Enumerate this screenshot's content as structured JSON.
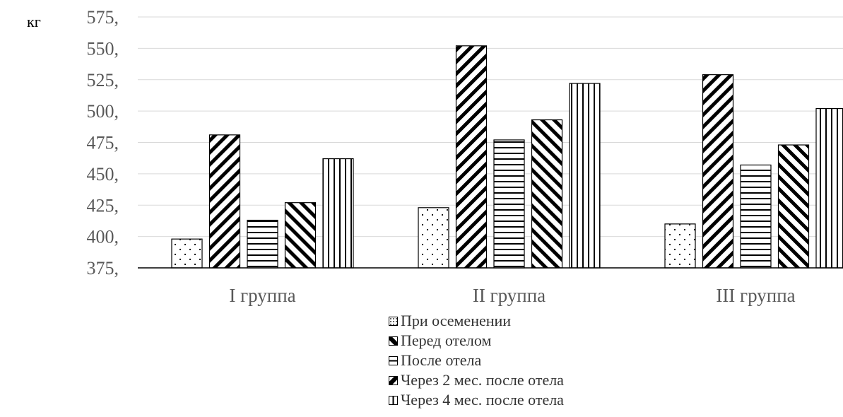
{
  "chart_data": {
    "type": "bar",
    "ylabel": "кг",
    "ylim": [
      375,
      575
    ],
    "yticks": [
      "375,",
      "400,",
      "425,",
      "450,",
      "475,",
      "500,",
      "525,",
      "550,",
      "575,"
    ],
    "categories": [
      "I группа",
      "II группа",
      "III группа"
    ],
    "grid": true,
    "legend_position": "bottom",
    "series": [
      {
        "name": "При осеменении",
        "pattern": "dots",
        "values": [
          398,
          423,
          410
        ]
      },
      {
        "name": "Перед отелом",
        "pattern": "diag-down",
        "values": [
          481,
          552,
          529
        ]
      },
      {
        "name": "После отела",
        "pattern": "horizontal",
        "values": [
          413,
          477,
          457
        ]
      },
      {
        "name": "Через 2 мес. после отела",
        "pattern": "diag-up",
        "values": [
          427,
          493,
          473
        ]
      },
      {
        "name": "Через 4 мес. после отела",
        "pattern": "vertical",
        "values": [
          462,
          522,
          502
        ]
      }
    ]
  }
}
